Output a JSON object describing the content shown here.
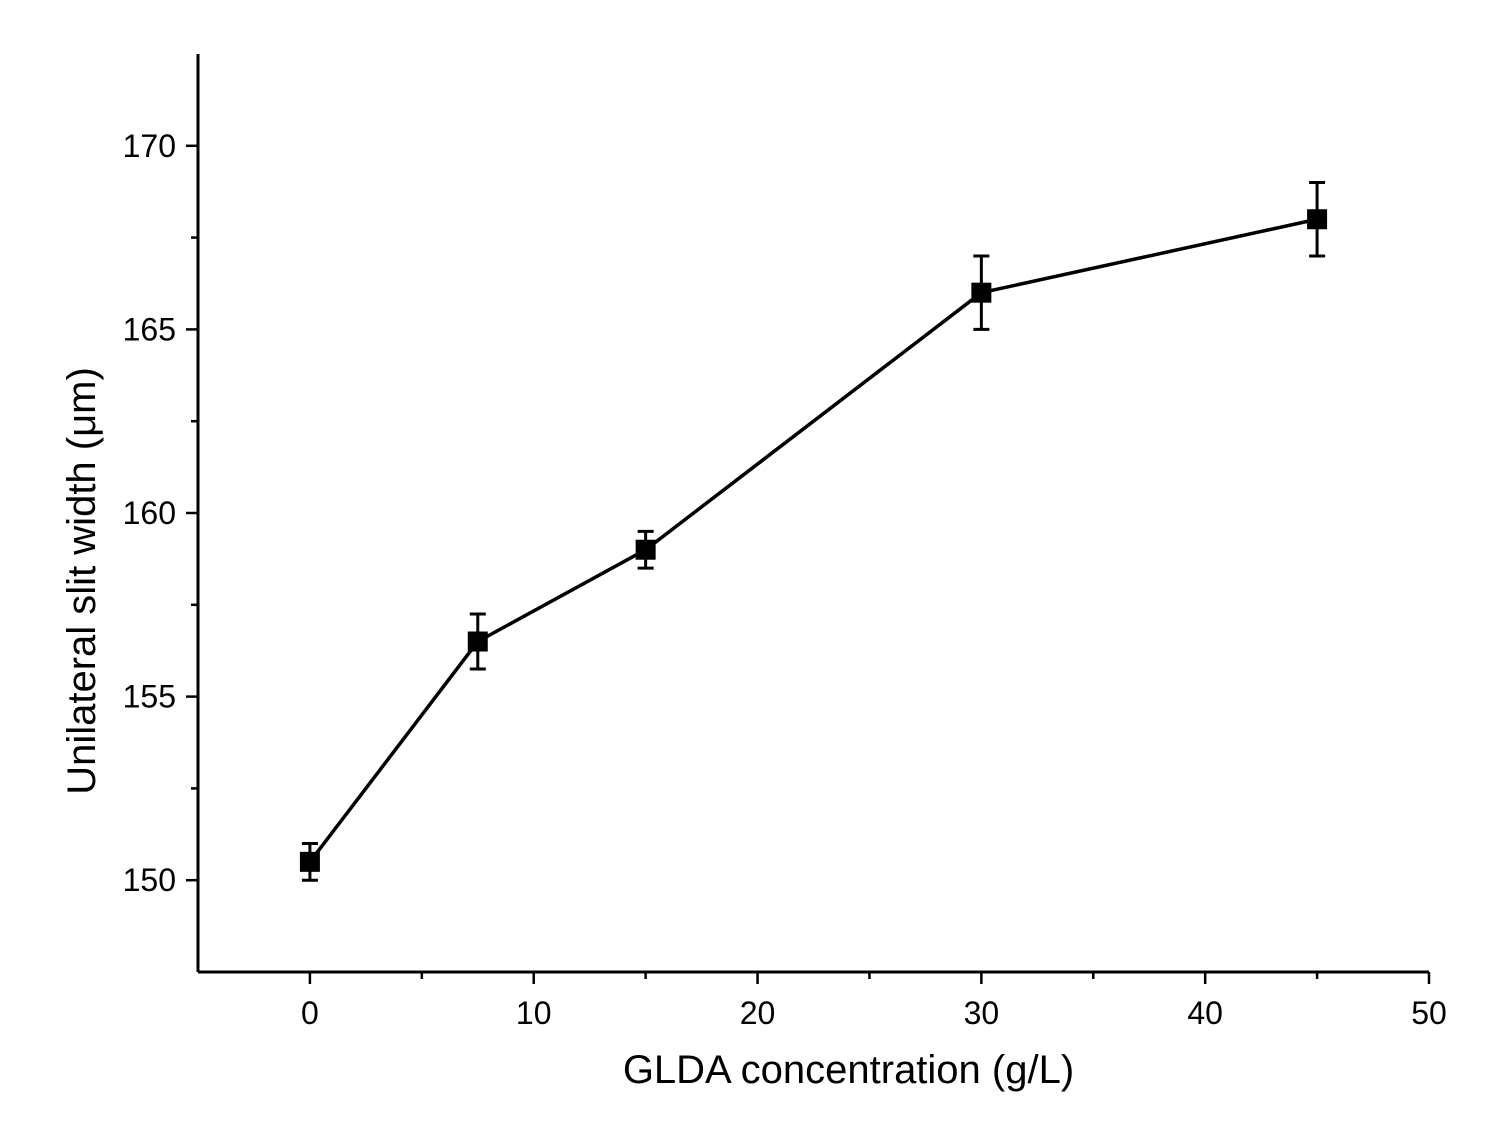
{
  "chart_data": {
    "type": "line",
    "title": "",
    "xlabel": "GLDA concentration (g/L)",
    "ylabel": "Unilateral slit width (μm)",
    "xlim": [
      -5,
      50
    ],
    "ylim": [
      147.5,
      172.5
    ],
    "x_major_ticks": [
      0,
      10,
      20,
      30,
      40,
      50
    ],
    "x_minor_ticks": [
      5,
      15,
      25,
      35,
      45
    ],
    "y_major_ticks": [
      150,
      155,
      160,
      165,
      170
    ],
    "y_minor_ticks": [
      152.5,
      157.5,
      162.5,
      167.5
    ],
    "x_tick_labels": [
      "0",
      "10",
      "20",
      "30",
      "40",
      "50"
    ],
    "y_tick_labels": [
      "150",
      "155",
      "160",
      "165",
      "170"
    ],
    "grid": false,
    "series": [
      {
        "name": "Unilateral slit width",
        "marker": "square",
        "color": "#000000",
        "x": [
          0,
          7.5,
          15,
          30,
          45
        ],
        "y": [
          150.5,
          156.5,
          159,
          166,
          168
        ],
        "error": [
          0.5,
          0.75,
          0.5,
          1.0,
          1.0
        ]
      }
    ]
  }
}
